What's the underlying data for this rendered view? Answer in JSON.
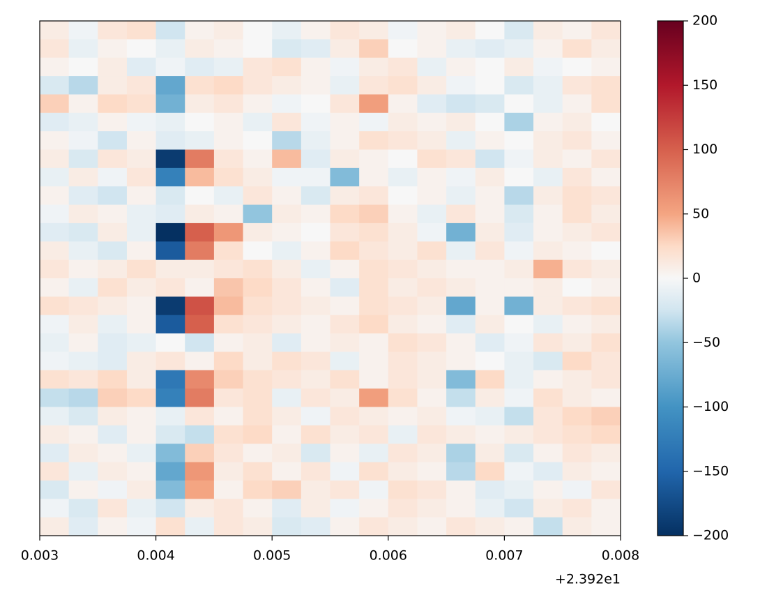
{
  "chart_data": {
    "type": "heatmap",
    "colormap": "RdBu_r",
    "x_edges": [
      23.923,
      23.92325,
      23.9235,
      23.92375,
      23.924,
      23.92425,
      23.9245,
      23.92475,
      23.925,
      23.92525,
      23.9255,
      23.92575,
      23.926,
      23.92625,
      23.9265,
      23.92675,
      23.927,
      23.92725,
      23.9275,
      23.92775,
      23.928
    ],
    "z": [
      [
        10,
        -5,
        15,
        20,
        -25,
        5,
        10,
        0,
        -10,
        5,
        15,
        10,
        -5,
        5,
        10,
        0,
        -20,
        10,
        5,
        15
      ],
      [
        15,
        -10,
        5,
        0,
        -10,
        10,
        5,
        0,
        -20,
        -15,
        10,
        30,
        0,
        5,
        -10,
        -15,
        -10,
        5,
        20,
        10
      ],
      [
        5,
        0,
        10,
        -15,
        -5,
        -15,
        -10,
        15,
        20,
        5,
        -5,
        10,
        15,
        -10,
        5,
        0,
        10,
        -5,
        0,
        5
      ],
      [
        -20,
        -35,
        10,
        15,
        -80,
        20,
        25,
        15,
        10,
        5,
        -10,
        15,
        20,
        10,
        -5,
        0,
        -20,
        -10,
        15,
        20
      ],
      [
        30,
        5,
        25,
        20,
        -70,
        10,
        15,
        5,
        -5,
        0,
        15,
        55,
        5,
        -15,
        -25,
        -20,
        0,
        -10,
        5,
        20
      ],
      [
        -15,
        -10,
        5,
        -5,
        -10,
        0,
        5,
        -10,
        15,
        -5,
        5,
        -5,
        10,
        5,
        10,
        0,
        -40,
        5,
        10,
        0
      ],
      [
        5,
        -5,
        -25,
        5,
        -15,
        -10,
        5,
        0,
        -35,
        -10,
        5,
        20,
        15,
        10,
        -10,
        5,
        0,
        10,
        15,
        5
      ],
      [
        10,
        -20,
        15,
        10,
        -190,
        80,
        15,
        5,
        40,
        -15,
        10,
        5,
        0,
        20,
        15,
        -25,
        -5,
        10,
        5,
        15
      ],
      [
        -10,
        10,
        -5,
        15,
        -120,
        40,
        20,
        10,
        -5,
        -5,
        -60,
        5,
        -10,
        5,
        -5,
        10,
        0,
        -10,
        15,
        5
      ],
      [
        5,
        -15,
        -25,
        5,
        -20,
        0,
        -10,
        15,
        5,
        -20,
        10,
        15,
        0,
        5,
        -10,
        5,
        -35,
        10,
        20,
        15
      ],
      [
        -5,
        10,
        5,
        -10,
        -15,
        10,
        5,
        -50,
        10,
        5,
        25,
        30,
        5,
        -10,
        15,
        5,
        -20,
        5,
        20,
        10
      ],
      [
        -15,
        -20,
        10,
        -10,
        -200,
        100,
        60,
        10,
        5,
        0,
        15,
        20,
        10,
        -5,
        -70,
        10,
        -15,
        5,
        10,
        15
      ],
      [
        10,
        -10,
        -20,
        5,
        -160,
        80,
        20,
        0,
        -10,
        5,
        25,
        15,
        10,
        20,
        -10,
        15,
        -5,
        10,
        5,
        0
      ],
      [
        15,
        5,
        10,
        20,
        10,
        10,
        15,
        20,
        10,
        -10,
        5,
        20,
        15,
        10,
        5,
        5,
        10,
        45,
        15,
        10
      ],
      [
        5,
        -10,
        20,
        10,
        15,
        5,
        35,
        25,
        15,
        5,
        -15,
        20,
        10,
        15,
        10,
        5,
        5,
        10,
        0,
        5
      ],
      [
        20,
        15,
        10,
        5,
        -190,
        110,
        40,
        20,
        15,
        10,
        5,
        20,
        15,
        10,
        -80,
        5,
        -70,
        10,
        15,
        20
      ],
      [
        -5,
        10,
        -10,
        5,
        -160,
        100,
        20,
        15,
        10,
        5,
        15,
        25,
        10,
        5,
        -15,
        10,
        0,
        -10,
        5,
        10
      ],
      [
        -10,
        5,
        -15,
        -10,
        0,
        -25,
        5,
        10,
        -15,
        5,
        10,
        5,
        20,
        15,
        5,
        -15,
        -5,
        15,
        10,
        20
      ],
      [
        -5,
        -10,
        -15,
        10,
        15,
        5,
        25,
        10,
        20,
        15,
        -10,
        5,
        15,
        10,
        5,
        0,
        -10,
        -20,
        25,
        15
      ],
      [
        20,
        15,
        25,
        10,
        -130,
        70,
        30,
        20,
        15,
        10,
        20,
        5,
        15,
        10,
        -60,
        25,
        -10,
        5,
        10,
        15
      ],
      [
        -30,
        -35,
        30,
        25,
        -120,
        80,
        15,
        20,
        -10,
        15,
        10,
        55,
        20,
        5,
        -30,
        10,
        -5,
        20,
        10,
        5
      ],
      [
        -10,
        -20,
        10,
        5,
        -10,
        15,
        5,
        20,
        10,
        -5,
        15,
        10,
        5,
        10,
        -5,
        -10,
        -30,
        15,
        25,
        30
      ],
      [
        10,
        5,
        -15,
        5,
        -20,
        -30,
        20,
        25,
        5,
        20,
        10,
        15,
        -10,
        15,
        10,
        5,
        10,
        15,
        20,
        25
      ],
      [
        -15,
        10,
        5,
        -10,
        -60,
        30,
        15,
        5,
        10,
        -20,
        5,
        -10,
        15,
        10,
        -40,
        10,
        -20,
        5,
        15,
        10
      ],
      [
        15,
        -10,
        10,
        5,
        -80,
        60,
        10,
        20,
        5,
        15,
        -5,
        20,
        10,
        5,
        -35,
        25,
        -5,
        -15,
        10,
        5
      ],
      [
        -20,
        5,
        -5,
        10,
        -60,
        50,
        5,
        25,
        30,
        10,
        15,
        -5,
        20,
        15,
        5,
        -15,
        -10,
        5,
        -5,
        15
      ],
      [
        -5,
        -20,
        15,
        -10,
        -25,
        10,
        15,
        5,
        -15,
        10,
        -5,
        5,
        15,
        10,
        5,
        -10,
        -25,
        10,
        15,
        5
      ],
      [
        10,
        -15,
        5,
        -5,
        20,
        -10,
        15,
        10,
        -20,
        -15,
        5,
        15,
        10,
        5,
        15,
        10,
        5,
        -30,
        10,
        5
      ]
    ],
    "xlim": [
      23.923,
      23.928
    ],
    "xticks": [
      {
        "value": 23.923,
        "label": "0.003"
      },
      {
        "value": 23.924,
        "label": "0.004"
      },
      {
        "value": 23.925,
        "label": "0.005"
      },
      {
        "value": 23.926,
        "label": "0.006"
      },
      {
        "value": 23.927,
        "label": "0.007"
      },
      {
        "value": 23.928,
        "label": "0.008"
      }
    ],
    "x_offset_label": "+2.392e1",
    "clim": [
      -200,
      200
    ],
    "cticks": [
      200,
      150,
      100,
      50,
      0,
      {
        "value": -50,
        "label": "−50"
      },
      {
        "value": -100,
        "label": "−100"
      },
      {
        "value": -150,
        "label": "−150"
      },
      {
        "value": -200,
        "label": "−200"
      }
    ]
  }
}
